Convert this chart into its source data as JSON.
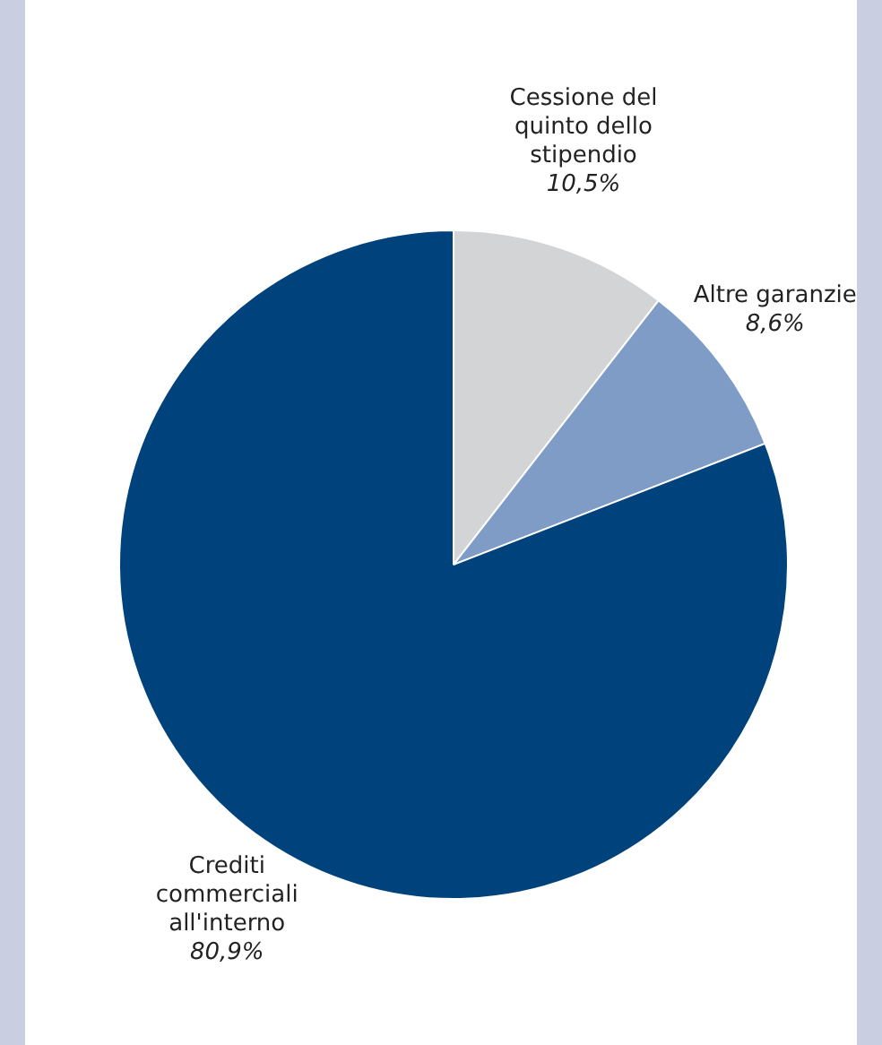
{
  "chart_data": {
    "type": "pie",
    "categories": [
      "Cessione del quinto dello stipendio",
      "Altre garanzie",
      "Crediti commerciali all'interno"
    ],
    "values": [
      10.5,
      8.6,
      80.9
    ],
    "colors": [
      "#d3d4d6",
      "#7f9cc7",
      "#00437c"
    ],
    "value_labels": [
      "10,5%",
      "8,6%",
      "80,9%"
    ],
    "legend": false
  }
}
